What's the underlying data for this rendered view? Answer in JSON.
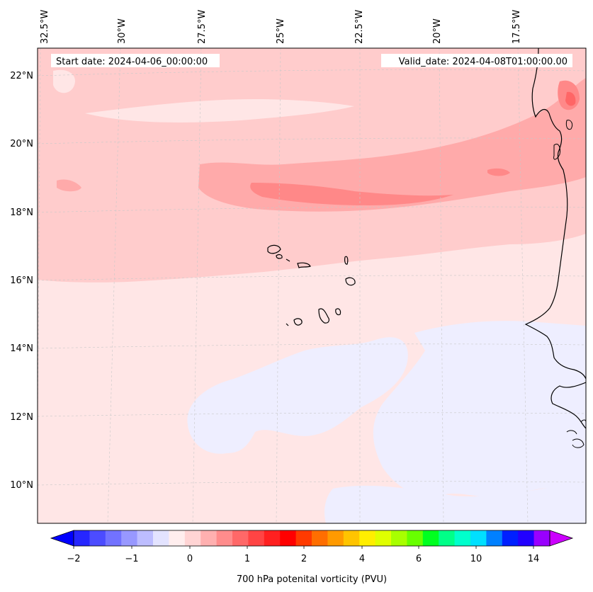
{
  "map": {
    "start_date": "Start date: 2024-04-06_00:00:00",
    "valid_date": "Valid_date: 2024-04-08T01:00:00.00",
    "lon_labels": [
      "32.5°W",
      "30°W",
      "27.5°W",
      "25°W",
      "22.5°W",
      "20°W",
      "17.5°W"
    ],
    "lat_labels": [
      "22°N",
      "20°N",
      "18°N",
      "16°N",
      "14°N",
      "12°N",
      "10°N"
    ],
    "field": "700 hPa potential vorticity",
    "palette": {
      "bg_low": "#ffe6e6",
      "neg_weak": "#eeeeff",
      "pos_light": "#ffcccc",
      "pos_mid": "#ffaaaa",
      "pos_strong": "#ff8888",
      "pos_core": "#ff6666",
      "coast": "#000000"
    }
  },
  "colorbar": {
    "label": "700 hPa potenital vorticity (PVU)",
    "tick_labels": [
      "−2",
      "−1",
      "0",
      "1",
      "2",
      "4",
      "6",
      "10",
      "14"
    ],
    "colors": [
      "#0000ff",
      "#2626ff",
      "#4c4cff",
      "#7272ff",
      "#9898ff",
      "#bdbdff",
      "#e3e3ff",
      "#ffeeee",
      "#ffd4d4",
      "#ffb0b0",
      "#ff8c8c",
      "#ff6868",
      "#ff4444",
      "#ff2020",
      "#ff0000",
      "#ff3a00",
      "#ff6e00",
      "#ff9a00",
      "#ffc400",
      "#ffee00",
      "#e0ff00",
      "#a8ff00",
      "#68ff00",
      "#00ff20",
      "#00ff88",
      "#00ffcc",
      "#00e0ff",
      "#0080ff",
      "#0020ff",
      "#2200ff",
      "#9900ff",
      "#cc00ff"
    ]
  }
}
